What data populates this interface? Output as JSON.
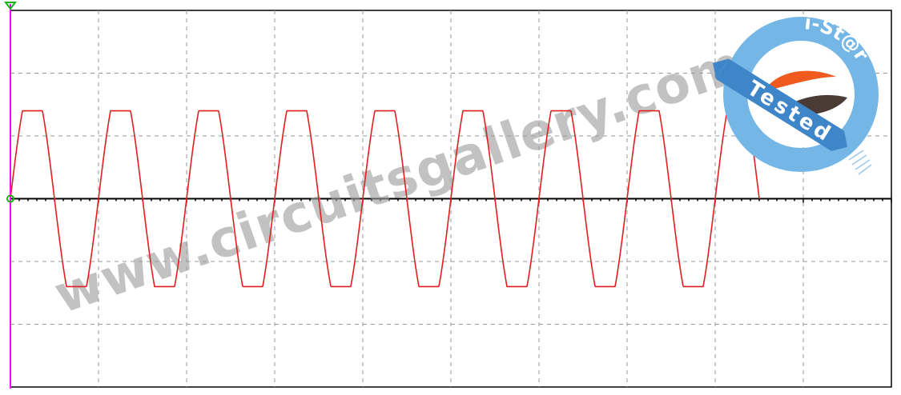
{
  "colors": {
    "background": "#ffffff",
    "frame": "#000000",
    "grid": "#9a9a9a",
    "trace": "#e31e1e",
    "y_axis": "#ff00ff",
    "marker": "#19b219",
    "stamp_ring": "#74b6e6",
    "stamp_ribbon": "#3f86c8",
    "stamp_orange": "#f05a1e",
    "stamp_dark": "#4a3c35",
    "watermark": "#9c9c9c"
  },
  "watermark": {
    "text": "www.circuitsgallery.com"
  },
  "stamp": {
    "top_text": "i-St@r",
    "ribbon_text": "Tested"
  },
  "chart_data": {
    "type": "line",
    "title": "",
    "xlabel": "",
    "ylabel": "",
    "grid": true,
    "x_divisions": 10,
    "y_divisions": 6,
    "xlim": [
      0,
      10
    ],
    "ylim": [
      -3,
      3
    ],
    "series": [
      {
        "waveform": "clipped-sine",
        "cycles": 8.5,
        "period_div": 1.0,
        "clip_level_div": 1.4,
        "peak_amplitude_div": 1.85,
        "start_x_div": 0,
        "end_x_div": 8.5
      }
    ],
    "y_zero_marker": true,
    "trigger_marker": true
  }
}
